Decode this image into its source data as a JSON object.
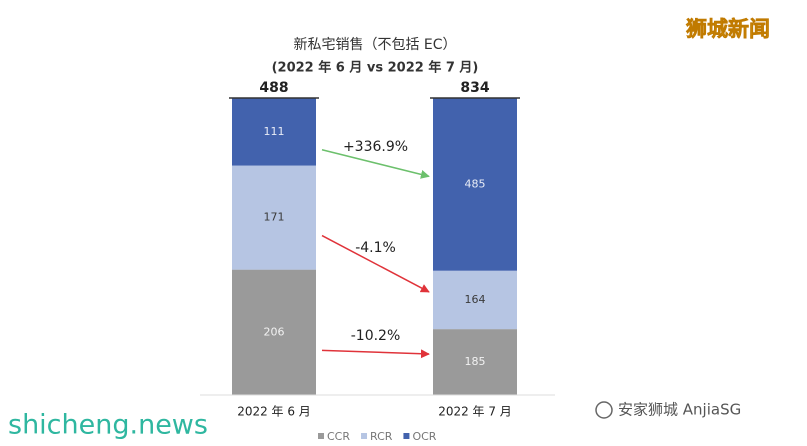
{
  "chart_data": {
    "type": "stacked_bar",
    "title": "新私宅销售（不包括 EC）",
    "subtitle": "(2022 年 6 月 vs 2022 年 7 月)",
    "categories": [
      "2022 年 6 月",
      "2022 年 7 月"
    ],
    "totals": [
      488,
      834
    ],
    "series": [
      {
        "name": "CCR",
        "color": "#9a9a9a",
        "label_color": "#f2f2f2",
        "values": [
          206,
          185
        ],
        "change_label": "-10.2%",
        "change_color": "#e0333a"
      },
      {
        "name": "RCR",
        "color": "#b6c5e3",
        "label_color": "#3a3a3a",
        "values": [
          171,
          164
        ],
        "change_label": "-4.1%",
        "change_color": "#e0333a"
      },
      {
        "name": "OCR",
        "color": "#4262ad",
        "label_color": "#e8ecf6",
        "values": [
          111,
          485
        ],
        "change_label": "+336.9%",
        "change_color": "#6cc06c"
      }
    ],
    "legend": "bottom"
  },
  "watermarks": {
    "top_right": "狮城新闻",
    "bottom_left": "shicheng.news",
    "bottom_right": "安家狮城 AnjiaSG"
  }
}
